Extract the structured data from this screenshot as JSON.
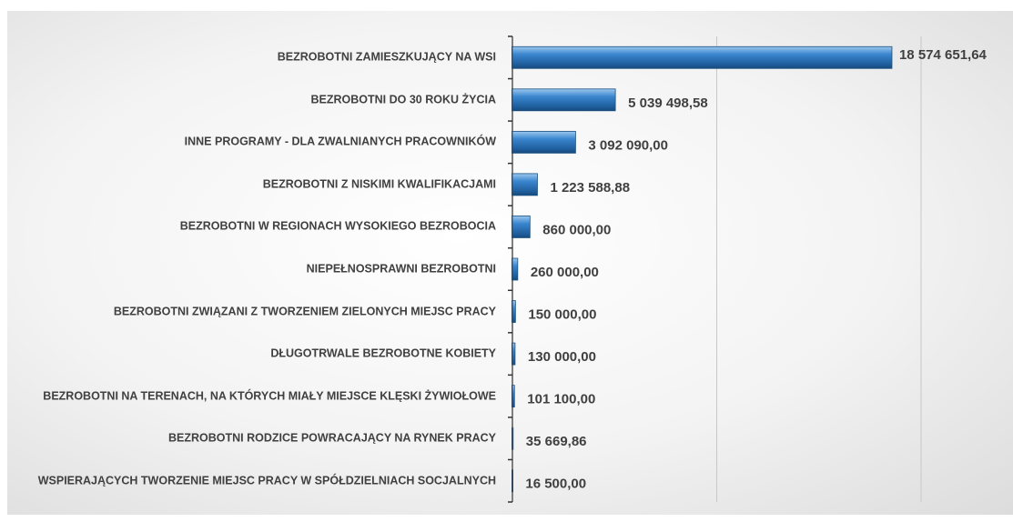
{
  "chart_data": {
    "type": "bar",
    "orientation": "horizontal",
    "categories": [
      "BEZROBOTNI ZAMIESZKUJĄCY NA WSI",
      "BEZROBOTNI DO 30 ROKU ŻYCIA",
      "INNE PROGRAMY - DLA ZWALNIANYCH PRACOWNIKÓW",
      "BEZROBOTNI Z NISKIMI KWALIFIKACJAMI",
      "BEZROBOTNI W REGIONACH WYSOKIEGO BEZROBOCIA",
      "NIEPEŁNOSPRAWNI BEZROBOTNI",
      "BEZROBOTNI ZWIĄZANI Z TWORZENIEM ZIELONYCH MIEJSC PRACY",
      "DŁUGOTRWALE BEZROBOTNE KOBIETY",
      "BEZROBOTNI NA TERENACH, NA KTÓRYCH MIAŁY MIEJSCE KLĘSKI ŻYWIOŁOWE",
      "BEZROBOTNI RODZICE POWRACAJĄCY NA RYNEK PRACY",
      "WSPIERAJĄCYCH TWORZENIE MIEJSC PRACY W SPÓŁDZIELNIACH SOCJALNYCH"
    ],
    "values": [
      18574651.64,
      5039498.58,
      3092090.0,
      1223588.88,
      860000.0,
      260000.0,
      150000.0,
      130000.0,
      101100.0,
      35669.86,
      16500.0
    ],
    "value_labels": [
      "18 574 651,64",
      "5 039 498,58",
      "3 092 090,00",
      "1 223 588,88",
      "860 000,00",
      "260 000,00",
      "150 000,00",
      "130 000,00",
      "101 100,00",
      "35 669,86",
      "16 500,00"
    ],
    "color": "#2e75b6",
    "xlim": [
      0,
      24500000
    ],
    "xticks": [
      0,
      10000000,
      20000000
    ],
    "grid": true
  }
}
